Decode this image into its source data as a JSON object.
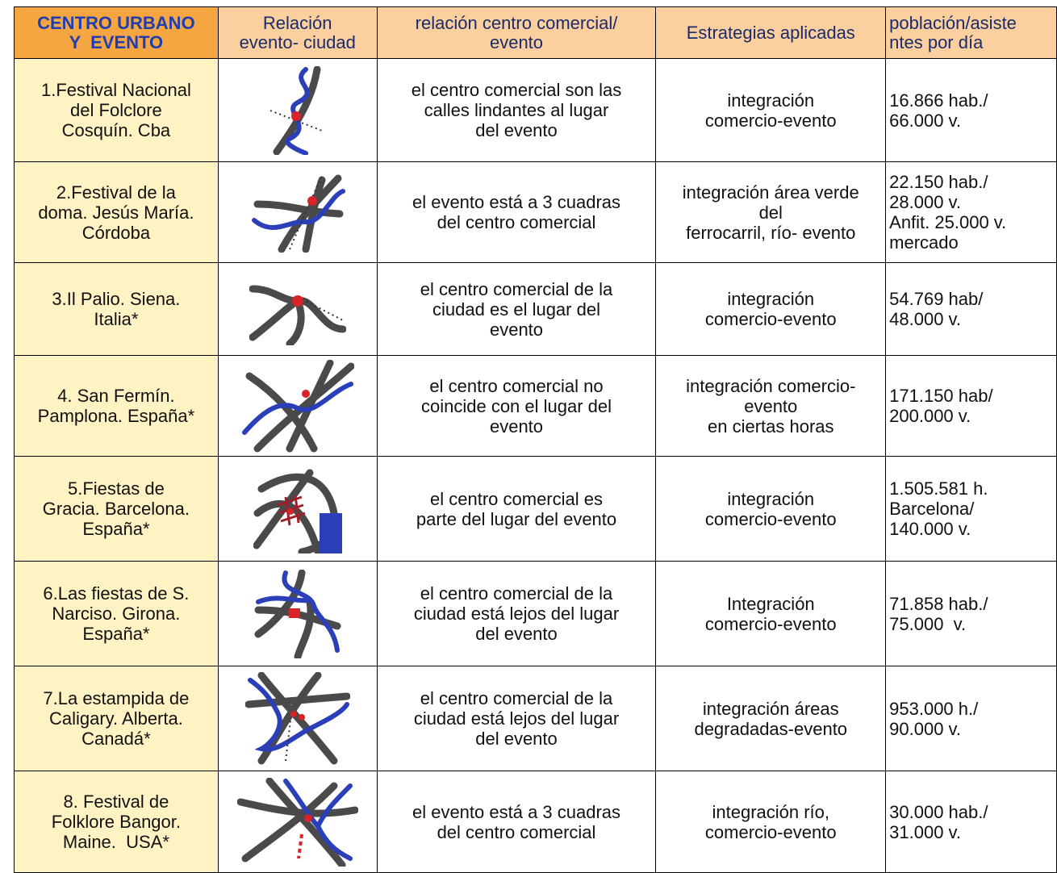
{
  "table": {
    "header": [
      [
        "CENTRO URBANO",
        "Y  EVENTO"
      ],
      [
        "Relación",
        "evento- ciudad"
      ],
      [
        "relación centro comercial/",
        "evento"
      ],
      [
        "Estrategias aplicadas"
      ],
      [
        "población/asiste",
        "ntes por día"
      ]
    ],
    "rows": [
      {
        "name": [
          "1.Festival Nacional",
          "del Folclore",
          "Cosquín. Cba"
        ],
        "relacion": [
          "el centro comercial son las",
          "calles lindantes al lugar",
          "del evento"
        ],
        "estrategias": [
          "integración",
          "comercio-evento"
        ],
        "poblacion": [
          "16.866 hab./",
          "66.000 v."
        ]
      },
      {
        "name": [
          "2.Festival de la",
          "doma. Jesús María.",
          "Córdoba"
        ],
        "relacion": [
          "el evento está a 3 cuadras",
          "del centro comercial"
        ],
        "estrategias": [
          "integración área verde",
          "del",
          "ferrocarril, río- evento"
        ],
        "poblacion": [
          "22.150 hab./",
          "28.000 v.",
          "Anfit. 25.000 v.",
          "mercado"
        ]
      },
      {
        "name": [
          "3.Il Palio. Siena.",
          "Italia*"
        ],
        "relacion": [
          "el centro comercial de la",
          "ciudad es el lugar del",
          "evento"
        ],
        "estrategias": [
          "integración",
          "comercio-evento"
        ],
        "poblacion": [
          "54.769 hab/",
          "48.000 v."
        ]
      },
      {
        "name": [
          "4. San Fermín.",
          "Pamplona. España*"
        ],
        "relacion": [
          "el centro comercial no",
          "coincide con el lugar del",
          "evento"
        ],
        "estrategias": [
          "integración comercio-",
          "evento",
          "en ciertas horas"
        ],
        "poblacion": [
          "171.150 hab/",
          "200.000 v."
        ]
      },
      {
        "name": [
          "5.Fiestas de",
          "Gracia. Barcelona.",
          "España*"
        ],
        "relacion": [
          "el centro comercial es",
          "parte del lugar del evento"
        ],
        "estrategias": [
          "integración",
          "comercio-evento"
        ],
        "poblacion": [
          "1.505.581 h.",
          "Barcelona/",
          "140.000 v."
        ]
      },
      {
        "name": [
          "6.Las fiestas de S.",
          "Narciso. Girona.",
          "España*"
        ],
        "relacion": [
          "el centro comercial de la",
          "ciudad está lejos del lugar",
          "del evento"
        ],
        "estrategias": [
          "Integración",
          "comercio-evento"
        ],
        "poblacion": [
          "71.858 hab./",
          "75.000  v."
        ]
      },
      {
        "name": [
          "7.La estampida de",
          "Caligary. Alberta.",
          "Canadá*"
        ],
        "relacion": [
          "el centro comercial de la",
          "ciudad está lejos del lugar",
          "del evento"
        ],
        "estrategias": [
          "integración áreas",
          "degradadas-evento"
        ],
        "poblacion": [
          "953.000 h./",
          "90.000 v."
        ]
      },
      {
        "name": [
          "8. Festival de",
          "Folklore Bangor.",
          "Maine.  USA*"
        ],
        "relacion": [
          "el evento está a 3 cuadras",
          "del centro comercial"
        ],
        "estrategias": [
          "integración río,",
          "comercio-evento"
        ],
        "poblacion": [
          "30.000 hab./",
          "31.000 v."
        ]
      }
    ]
  }
}
